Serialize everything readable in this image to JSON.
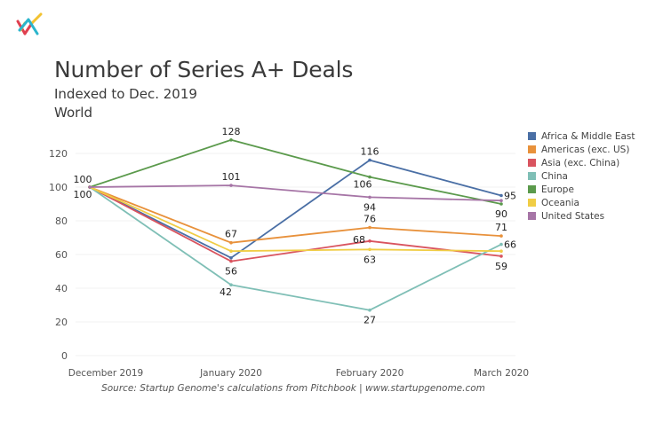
{
  "header": {
    "title": "Number of Series A+ Deals",
    "subtitle": "Indexed to Dec. 2019",
    "region": "World"
  },
  "logo": {
    "icon": "startup-genome-logo-icon",
    "colors": [
      "#e0404f",
      "#f2c230",
      "#2bb5cc"
    ]
  },
  "source": "Source: Startup Genome's calculations from Pitchbook | www.startupgenome.com",
  "chart_data": {
    "type": "line",
    "title": "Number of Series A+ Deals",
    "subtitle": "Indexed to Dec. 2019 — World",
    "xlabel": "",
    "ylabel": "",
    "categories": [
      "December 2019",
      "January 2020",
      "February 2020",
      "March 2020"
    ],
    "ylim": [
      0,
      130
    ],
    "yticks": [
      0,
      20,
      40,
      60,
      80,
      100,
      120
    ],
    "grid": true,
    "legend_position": "right",
    "series": [
      {
        "name": "Africa & Middle East",
        "color": "#4a6fa5",
        "values": [
          100,
          58,
          116,
          95
        ]
      },
      {
        "name": "Americas (exc. US)",
        "color": "#e8913b",
        "values": [
          100,
          67,
          76,
          71
        ]
      },
      {
        "name": "Asia (exc. China)",
        "color": "#d9545f",
        "values": [
          100,
          56,
          68,
          59
        ]
      },
      {
        "name": "China",
        "color": "#7fbfb6",
        "values": [
          100,
          42,
          27,
          66
        ]
      },
      {
        "name": "Europe",
        "color": "#5b9a4c",
        "values": [
          100,
          128,
          106,
          90
        ]
      },
      {
        "name": "Oceania",
        "color": "#f0cd45",
        "values": [
          100,
          62,
          63,
          62
        ]
      },
      {
        "name": "United States",
        "color": "#a675a6",
        "values": [
          100,
          101,
          94,
          92
        ]
      }
    ],
    "annotations": [
      {
        "text": "100",
        "category": 0,
        "value": 100,
        "pos": "above-left"
      },
      {
        "text": "100",
        "category": 0,
        "value": 100,
        "pos": "below-left"
      },
      {
        "text": "128",
        "category": 1,
        "value": 128,
        "pos": "above"
      },
      {
        "text": "101",
        "category": 1,
        "value": 101,
        "pos": "above"
      },
      {
        "text": "67",
        "category": 1,
        "value": 67,
        "pos": "above"
      },
      {
        "text": "56",
        "category": 1,
        "value": 56,
        "pos": "below"
      },
      {
        "text": "42",
        "category": 1,
        "value": 42,
        "pos": "below-left"
      },
      {
        "text": "116",
        "category": 2,
        "value": 116,
        "pos": "above"
      },
      {
        "text": "106",
        "category": 2,
        "value": 106,
        "pos": "below-left"
      },
      {
        "text": "94",
        "category": 2,
        "value": 94,
        "pos": "below"
      },
      {
        "text": "76",
        "category": 2,
        "value": 76,
        "pos": "above"
      },
      {
        "text": "68",
        "category": 2,
        "value": 68,
        "pos": "left"
      },
      {
        "text": "63",
        "category": 2,
        "value": 63,
        "pos": "below"
      },
      {
        "text": "27",
        "category": 2,
        "value": 27,
        "pos": "below"
      },
      {
        "text": "95",
        "category": 3,
        "value": 95,
        "pos": "right"
      },
      {
        "text": "90",
        "category": 3,
        "value": 90,
        "pos": "below"
      },
      {
        "text": "71",
        "category": 3,
        "value": 71,
        "pos": "above"
      },
      {
        "text": "66",
        "category": 3,
        "value": 66,
        "pos": "right"
      },
      {
        "text": "59",
        "category": 3,
        "value": 59,
        "pos": "below"
      }
    ]
  }
}
